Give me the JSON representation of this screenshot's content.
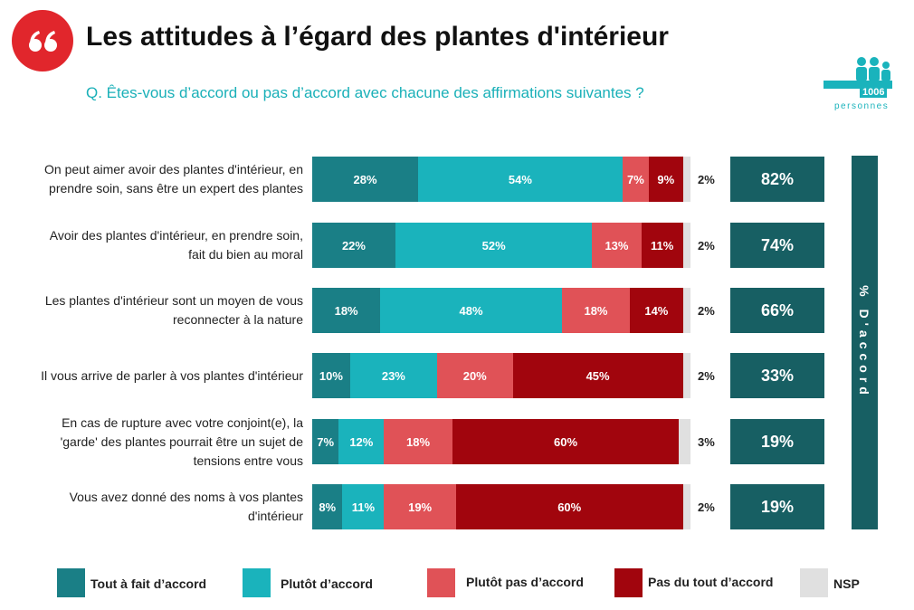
{
  "title": "Les attitudes à l’égard des plantes d'intérieur",
  "subtitle": "Q. Êtes-vous d’accord ou pas d’accord avec chacune des affirmations suivantes ?",
  "sample_size": 1006,
  "sample_label": "personnes",
  "chart_data": {
    "type": "stacked_bar_horizontal",
    "categories": [
      "On peut aimer avoir des plantes d'intérieur, en\nprendre soin, sans être un expert des plantes",
      "Avoir des plantes d'intérieur, en prendre soin,\nfait du bien au moral",
      "Les plantes d'intérieur sont un moyen de vous\nreconnecter à la nature",
      "Il vous arrive de parler à vos plantes d'intérieur",
      "En cas de rupture avec votre conjoint(e), la\n'garde' des plantes pourrait être un sujet de\ntensions entre vous",
      "Vous avez donné des noms à vos plantes\nd'intérieur"
    ],
    "series": [
      {
        "name": "Tout à fait d’accord",
        "color": "#1a7f86",
        "values": [
          28,
          22,
          18,
          10,
          7,
          8
        ],
        "value_labels": [
          "28%",
          "22%",
          "18%",
          "10%",
          "7%",
          "8%"
        ]
      },
      {
        "name": "Plutôt d’accord",
        "color": "#1ab3bc",
        "values": [
          54,
          52,
          48,
          23,
          12,
          11
        ],
        "value_labels": [
          "54%",
          "52%",
          "48%",
          "23%",
          "12%",
          "11%"
        ]
      },
      {
        "name": "Plutôt pas d’accord",
        "color": "#e05257",
        "values": [
          7,
          13,
          18,
          20,
          18,
          19
        ],
        "value_labels": [
          "7%",
          "13%",
          "18%",
          "20%",
          "18%",
          "19%"
        ]
      },
      {
        "name": "Pas du tout d’accord",
        "color": "#a1050d",
        "values": [
          9,
          11,
          14,
          45,
          60,
          60
        ],
        "value_labels": [
          "9%",
          "11%",
          "14%",
          "45%",
          "60%",
          "60%"
        ]
      },
      {
        "name": "NSP",
        "color": "#e0e0e0",
        "values": [
          2,
          2,
          2,
          2,
          3,
          2
        ],
        "value_labels": [
          "2%",
          "2%",
          "2%",
          "2%",
          "3%",
          "2%"
        ]
      }
    ],
    "summary": {
      "title": "% D'accord",
      "color": "#175f63",
      "values": [
        82,
        74,
        66,
        33,
        19,
        19
      ],
      "value_labels": [
        "82%",
        "74%",
        "66%",
        "33%",
        "19%",
        "19%"
      ]
    }
  }
}
